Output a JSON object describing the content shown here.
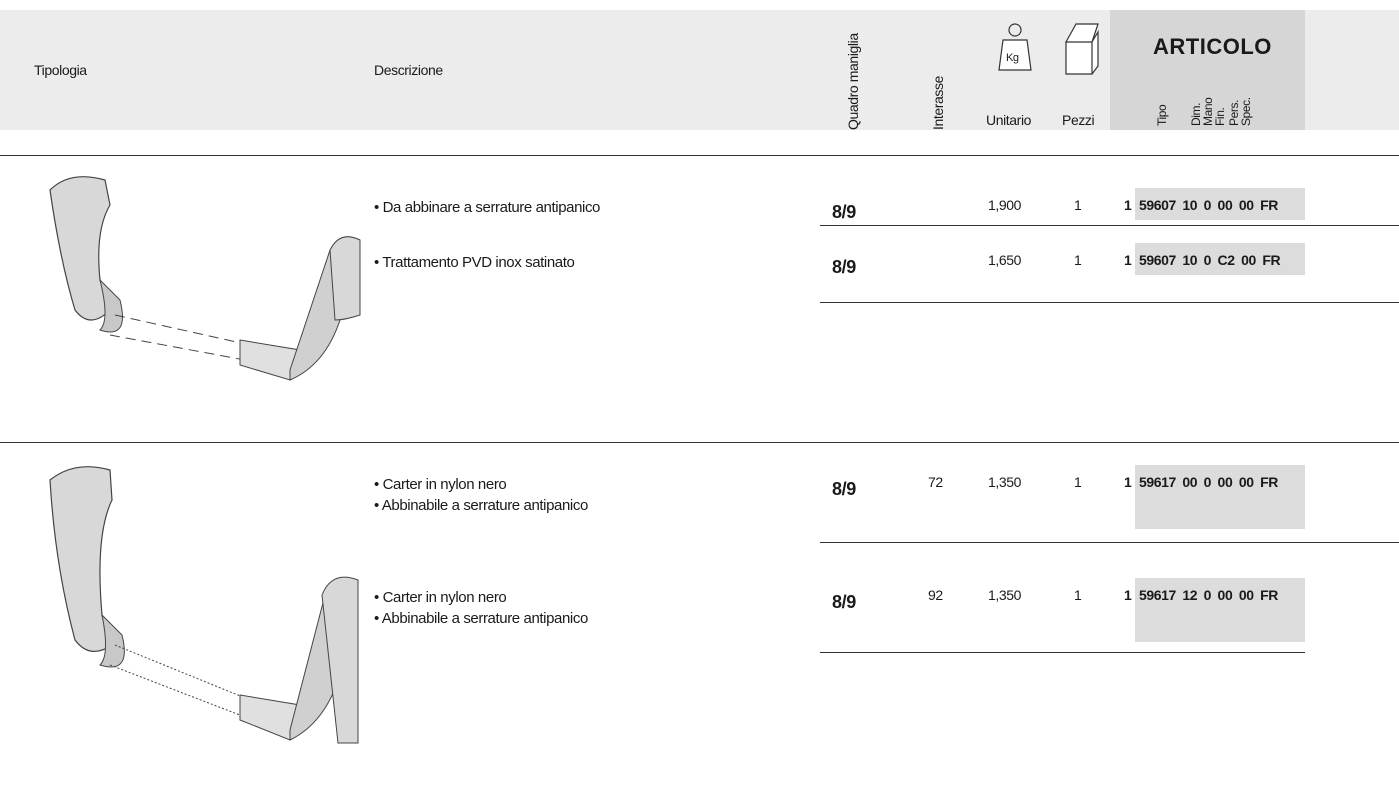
{
  "header": {
    "tipologia": "Tipologia",
    "descrizione": "Descrizione",
    "quadro": "Quadro maniglia",
    "interasse": "Interasse",
    "kg": "Kg",
    "unitario": "Unitario",
    "pezzi": "Pezzi",
    "articolo": "ARTICOLO",
    "articolo_parts": [
      "Tipo",
      "Dim.",
      "Mano",
      "Fin.",
      "Pers.",
      "Spec."
    ]
  },
  "sections": [
    {
      "items": [
        {
          "description": [
            "• Da abbinare a serrature antipanico"
          ],
          "quadro": "8/9",
          "unitario": "1,900",
          "pezzi": "1",
          "tipo": "1",
          "code": "59607 10 0 00 00 FR"
        },
        {
          "description": [
            "• Trattamento PVD inox satinato"
          ],
          "quadro": "8/9",
          "unitario": "1,650",
          "pezzi": "1",
          "tipo": "1",
          "code": "59607 10 0 C2 00 FR"
        }
      ]
    },
    {
      "items": [
        {
          "description": [
            "• Carter in nylon nero",
            "• Abbinabile a  serrature antipanico"
          ],
          "quadro": "8/9",
          "interasse": "72",
          "unitario": "1,350",
          "pezzi": "1",
          "tipo": "1",
          "code": "59617 00 0 00 00 FR"
        },
        {
          "description": [
            "• Carter in nylon nero",
            "• Abbinabile a  serrature antipanico"
          ],
          "quadro": "8/9",
          "interasse": "92",
          "unitario": "1,350",
          "pezzi": "1",
          "tipo": "1",
          "code": "59617 12 0 00 00 FR"
        }
      ]
    }
  ]
}
